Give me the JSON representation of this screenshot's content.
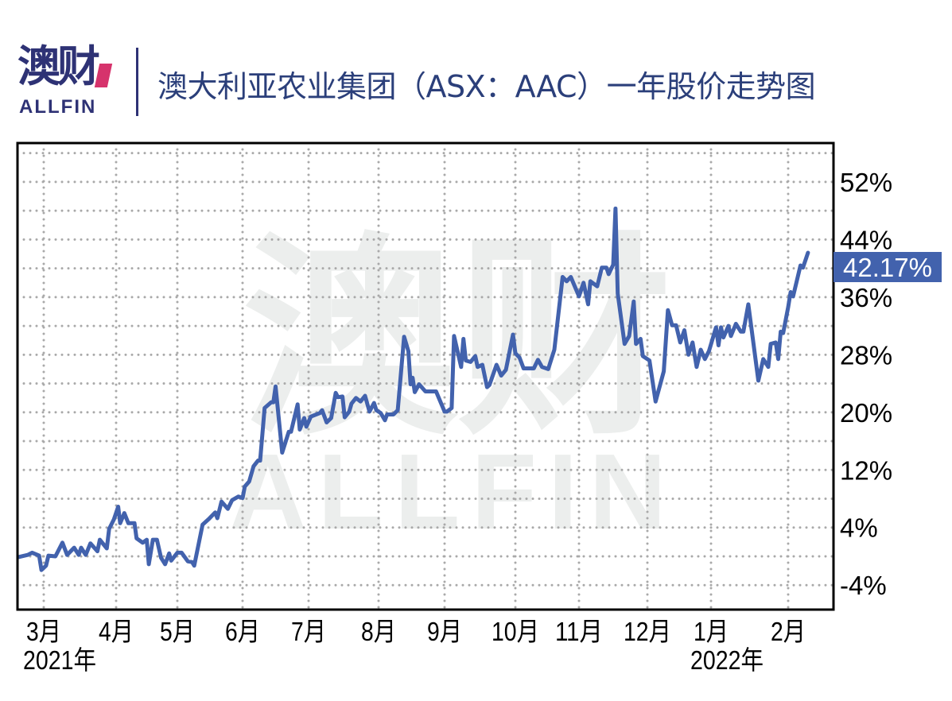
{
  "header": {
    "logo_cn": "澳财",
    "logo_en": "ALLFIN",
    "title": "澳大利亚农业集团（ASX：AAC）一年股价走势图"
  },
  "watermark": {
    "cn": "澳财",
    "en": "ALLFIN"
  },
  "colors": {
    "line": "#4262ad",
    "label_bg": "#4262ad",
    "brand": "#2e3275",
    "grid": "#a9a9a9",
    "watermark": "#eceeed"
  },
  "chart_data": {
    "type": "line",
    "title": "澳大利亚农业集团（ASX：AAC）一年股价走势图",
    "ylabel": "",
    "xlabel": "",
    "y_axis_position": "right",
    "ylim": [
      -7.4,
      57.4
    ],
    "yticks": [
      52,
      44,
      36,
      28,
      20,
      12,
      4,
      -4
    ],
    "ytick_labels": [
      "52%",
      "44%",
      "36%",
      "28%",
      "20%",
      "12%",
      "4%",
      "-4%"
    ],
    "xticks": [
      "2021-03-01",
      "2021-04-01",
      "2021-05-01",
      "2021-06-01",
      "2021-07-01",
      "2021-08-01",
      "2021-09-01",
      "2021-10-01",
      "2021-11-01",
      "2021-12-01",
      "2022-01-01",
      "2022-02-01"
    ],
    "xtick_labels": [
      "3月",
      "4月",
      "5月",
      "6月",
      "7月",
      "8月",
      "9月",
      "10月",
      "11月",
      "12月",
      "1月",
      "2月"
    ],
    "year_labels": [
      {
        "at": "2021-03-01",
        "text": "2021年"
      },
      {
        "at": "2022-01-01",
        "text": "2022年"
      }
    ],
    "grid": true,
    "last_value_label": "42.17%",
    "series": [
      {
        "unit": "%",
        "points": [
          [
            "2021-02-18",
            -0.1
          ],
          [
            "2021-02-22",
            0.2
          ],
          [
            "2021-02-24",
            0.5
          ],
          [
            "2021-02-27",
            0.1
          ],
          [
            "2021-02-28",
            -1.9
          ],
          [
            "2021-03-02",
            -1.3
          ],
          [
            "2021-03-03",
            0.1
          ],
          [
            "2021-03-06",
            0.0
          ],
          [
            "2021-03-09",
            1.9
          ],
          [
            "2021-03-11",
            0.2
          ],
          [
            "2021-03-14",
            1.2
          ],
          [
            "2021-03-16",
            0.2
          ],
          [
            "2021-03-17",
            1.2
          ],
          [
            "2021-03-19",
            0.2
          ],
          [
            "2021-03-21",
            1.8
          ],
          [
            "2021-03-24",
            0.7
          ],
          [
            "2021-03-25",
            2.3
          ],
          [
            "2021-03-28",
            1.1
          ],
          [
            "2021-03-29",
            3.8
          ],
          [
            "2021-03-31",
            5.1
          ],
          [
            "2021-04-02",
            6.9
          ],
          [
            "2021-04-03",
            4.6
          ],
          [
            "2021-04-05",
            6.0
          ],
          [
            "2021-04-07",
            4.6
          ],
          [
            "2021-04-10",
            4.6
          ],
          [
            "2021-04-11",
            2.5
          ],
          [
            "2021-04-14",
            1.9
          ],
          [
            "2021-04-16",
            2.3
          ],
          [
            "2021-04-17",
            -1.1
          ],
          [
            "2021-04-19",
            2.3
          ],
          [
            "2021-04-21",
            2.3
          ],
          [
            "2021-04-23",
            -0.2
          ],
          [
            "2021-04-25",
            -1.1
          ],
          [
            "2021-04-27",
            0.4
          ],
          [
            "2021-04-28",
            -0.6
          ],
          [
            "2021-05-01",
            0.5
          ],
          [
            "2021-05-03",
            0.5
          ],
          [
            "2021-05-06",
            -0.7
          ],
          [
            "2021-05-08",
            -0.8
          ],
          [
            "2021-05-09",
            -1.3
          ],
          [
            "2021-05-13",
            4.4
          ],
          [
            "2021-05-16",
            5.2
          ],
          [
            "2021-05-19",
            6.1
          ],
          [
            "2021-05-20",
            5.3
          ],
          [
            "2021-05-22",
            7.6
          ],
          [
            "2021-05-25",
            6.6
          ],
          [
            "2021-05-27",
            7.8
          ],
          [
            "2021-05-30",
            8.3
          ],
          [
            "2021-06-01",
            8.1
          ],
          [
            "2021-06-02",
            9.7
          ],
          [
            "2021-06-04",
            10.4
          ],
          [
            "2021-06-06",
            12.5
          ],
          [
            "2021-06-08",
            13.3
          ],
          [
            "2021-06-09",
            13.3
          ],
          [
            "2021-06-11",
            20.6
          ],
          [
            "2021-06-14",
            21.4
          ],
          [
            "2021-06-15",
            21.4
          ],
          [
            "2021-06-16",
            23.6
          ],
          [
            "2021-06-19",
            14.4
          ],
          [
            "2021-06-22",
            17.3
          ],
          [
            "2021-06-23",
            17.3
          ],
          [
            "2021-06-26",
            21.1
          ],
          [
            "2021-06-27",
            17.6
          ],
          [
            "2021-06-29",
            19.2
          ],
          [
            "2021-06-30",
            18.0
          ],
          [
            "2021-07-02",
            19.4
          ],
          [
            "2021-07-06",
            19.9
          ],
          [
            "2021-07-07",
            20.3
          ],
          [
            "2021-07-09",
            18.6
          ],
          [
            "2021-07-11",
            19.2
          ],
          [
            "2021-07-13",
            22.7
          ],
          [
            "2021-07-14",
            22.1
          ],
          [
            "2021-07-16",
            22.2
          ],
          [
            "2021-07-17",
            19.3
          ],
          [
            "2021-07-19",
            20.1
          ],
          [
            "2021-07-20",
            21.2
          ],
          [
            "2021-07-22",
            22.0
          ],
          [
            "2021-07-24",
            21.5
          ],
          [
            "2021-07-26",
            22.3
          ],
          [
            "2021-07-28",
            20.1
          ],
          [
            "2021-07-30",
            21.3
          ],
          [
            "2021-07-31",
            20.3
          ],
          [
            "2021-08-02",
            19.9
          ],
          [
            "2021-08-04",
            18.9
          ],
          [
            "2021-08-05",
            19.7
          ],
          [
            "2021-08-08",
            19.7
          ],
          [
            "2021-08-10",
            20.3
          ],
          [
            "2021-08-13",
            30.5
          ],
          [
            "2021-08-15",
            28.5
          ],
          [
            "2021-08-16",
            23.9
          ],
          [
            "2021-08-17",
            24.8
          ],
          [
            "2021-08-18",
            22.8
          ],
          [
            "2021-08-20",
            23.9
          ],
          [
            "2021-08-23",
            22.9
          ],
          [
            "2021-08-28",
            22.9
          ],
          [
            "2021-09-01",
            20.1
          ],
          [
            "2021-09-02",
            20.1
          ],
          [
            "2021-09-04",
            20.6
          ],
          [
            "2021-09-05",
            30.6
          ],
          [
            "2021-09-08",
            26.3
          ],
          [
            "2021-09-09",
            30.2
          ],
          [
            "2021-09-10",
            27.2
          ],
          [
            "2021-09-12",
            27.0
          ],
          [
            "2021-09-14",
            27.8
          ],
          [
            "2021-09-15",
            26.3
          ],
          [
            "2021-09-17",
            26.6
          ],
          [
            "2021-09-19",
            23.5
          ],
          [
            "2021-09-20",
            23.8
          ],
          [
            "2021-09-23",
            26.6
          ],
          [
            "2021-09-25",
            25.1
          ],
          [
            "2021-09-27",
            25.9
          ],
          [
            "2021-09-30",
            30.8
          ],
          [
            "2021-10-01",
            28.2
          ],
          [
            "2021-10-03",
            27.6
          ],
          [
            "2021-10-05",
            26.1
          ],
          [
            "2021-10-10",
            26.1
          ],
          [
            "2021-10-12",
            27.3
          ],
          [
            "2021-10-14",
            26.3
          ],
          [
            "2021-10-17",
            26.0
          ],
          [
            "2021-10-20",
            28.7
          ],
          [
            "2021-10-24",
            38.8
          ],
          [
            "2021-10-26",
            38.2
          ],
          [
            "2021-10-28",
            38.8
          ],
          [
            "2021-11-01",
            36.1
          ],
          [
            "2021-11-03",
            38.0
          ],
          [
            "2021-11-05",
            35.0
          ],
          [
            "2021-11-06",
            38.2
          ],
          [
            "2021-11-09",
            37.5
          ],
          [
            "2021-11-11",
            40.1
          ],
          [
            "2021-11-13",
            40.1
          ],
          [
            "2021-11-14",
            39.2
          ],
          [
            "2021-11-16",
            40.5
          ],
          [
            "2021-11-17",
            48.3
          ],
          [
            "2021-11-18",
            36.5
          ],
          [
            "2021-11-21",
            29.5
          ],
          [
            "2021-11-23",
            30.6
          ],
          [
            "2021-11-25",
            35.4
          ],
          [
            "2021-11-26",
            29.5
          ],
          [
            "2021-11-28",
            30.2
          ],
          [
            "2021-11-29",
            27.8
          ],
          [
            "2021-12-02",
            27.2
          ],
          [
            "2021-12-05",
            21.5
          ],
          [
            "2021-12-09",
            25.7
          ],
          [
            "2021-12-11",
            34.2
          ],
          [
            "2021-12-13",
            32.1
          ],
          [
            "2021-12-15",
            32.1
          ],
          [
            "2021-12-17",
            29.7
          ],
          [
            "2021-12-19",
            31.4
          ],
          [
            "2021-12-21",
            28.0
          ],
          [
            "2021-12-23",
            29.7
          ],
          [
            "2021-12-25",
            26.3
          ],
          [
            "2021-12-27",
            28.7
          ],
          [
            "2021-12-29",
            27.4
          ],
          [
            "2021-12-31",
            28.5
          ],
          [
            "2022-01-03",
            31.8
          ],
          [
            "2022-01-04",
            29.3
          ],
          [
            "2022-01-05",
            31.8
          ],
          [
            "2022-01-06",
            30.4
          ],
          [
            "2022-01-08",
            32.0
          ],
          [
            "2022-01-09",
            30.6
          ],
          [
            "2022-01-11",
            32.3
          ],
          [
            "2022-01-13",
            31.2
          ],
          [
            "2022-01-14",
            31.2
          ],
          [
            "2022-01-16",
            35.0
          ],
          [
            "2022-01-20",
            24.4
          ],
          [
            "2022-01-22",
            27.4
          ],
          [
            "2022-01-24",
            26.3
          ],
          [
            "2022-01-25",
            29.5
          ],
          [
            "2022-01-27",
            29.7
          ],
          [
            "2022-01-28",
            27.4
          ],
          [
            "2022-01-29",
            31.2
          ],
          [
            "2022-01-30",
            31.0
          ],
          [
            "2022-02-01",
            34.6
          ],
          [
            "2022-02-02",
            36.7
          ],
          [
            "2022-02-03",
            36.1
          ],
          [
            "2022-02-06",
            40.4
          ],
          [
            "2022-02-07",
            40.1
          ],
          [
            "2022-02-09",
            42.17
          ]
        ]
      }
    ]
  }
}
